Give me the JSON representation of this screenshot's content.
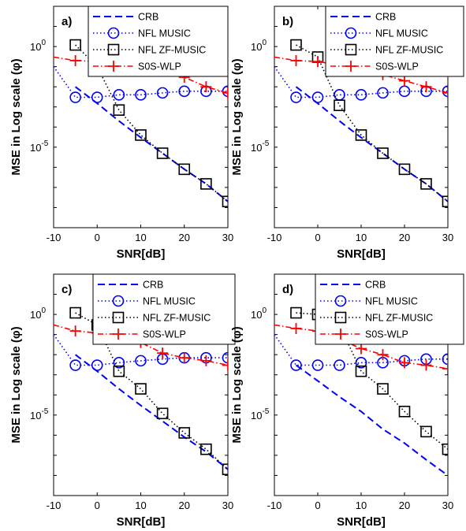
{
  "chart_data": [
    {
      "type": "line",
      "panel_label": "a)",
      "xlabel": "SNR[dB]",
      "ylabel": "MSE in Log scale (φ)",
      "x_ticks": [
        "-10",
        "0",
        "10",
        "20",
        "30"
      ],
      "y_tick_labels": [
        {
          "value": 1,
          "base": "10",
          "exp": "0"
        },
        {
          "value": 1e-05,
          "base": "10",
          "exp": "-5"
        }
      ],
      "xlim": [
        -10,
        30
      ],
      "ylim": [
        1e-09,
        100
      ],
      "yscale": "log",
      "grid": false,
      "legend_position": "top-right",
      "series": [
        {
          "name": "CRB",
          "color": "#0000ff",
          "style": "dashed",
          "marker": "none",
          "x": [
            -5,
            0,
            5,
            10,
            15,
            20,
            25,
            30
          ],
          "y": [
            0.01,
            0.0015,
            0.0002,
            3e-05,
            5e-06,
            8e-07,
            1.5e-07,
            2e-08
          ]
        },
        {
          "name": "NFL MUSIC",
          "color": "#0000ff",
          "style": "dotted",
          "marker": "circle",
          "x": [
            -10,
            -5,
            0,
            5,
            10,
            15,
            20,
            25,
            30
          ],
          "y": [
            0.1,
            0.003,
            0.003,
            0.004,
            0.004,
            0.005,
            0.006,
            0.006,
            0.006
          ]
        },
        {
          "name": "NFL ZF-MUSIC",
          "color": "#000000",
          "style": "dotted",
          "marker": "square",
          "x": [
            -5,
            0,
            5,
            10,
            15,
            20,
            25,
            30
          ],
          "y": [
            1.2,
            0.1,
            0.0007,
            4e-05,
            5e-06,
            8e-07,
            1.5e-07,
            2e-08
          ]
        },
        {
          "name": "S0S-WLP",
          "color": "#ff0000",
          "style": "dashdot",
          "marker": "plus",
          "x": [
            -10,
            -5,
            0,
            5,
            10,
            15,
            20,
            25,
            30
          ],
          "y": [
            0.3,
            0.2,
            0.18,
            0.12,
            0.08,
            0.06,
            0.03,
            0.01,
            0.005
          ]
        }
      ]
    },
    {
      "type": "line",
      "panel_label": "b)",
      "xlabel": "SNR[dB]",
      "ylabel": "MSE in Log scale (φ)",
      "x_ticks": [
        "-10",
        "0",
        "10",
        "20",
        "30"
      ],
      "y_tick_labels": [
        {
          "value": 1,
          "base": "10",
          "exp": "0"
        },
        {
          "value": 1e-05,
          "base": "10",
          "exp": "-5"
        }
      ],
      "xlim": [
        -10,
        30
      ],
      "ylim": [
        1e-09,
        100
      ],
      "yscale": "log",
      "grid": false,
      "legend_position": "top-right",
      "series": [
        {
          "name": "CRB",
          "color": "#0000ff",
          "style": "dashed",
          "marker": "none",
          "x": [
            -5,
            0,
            5,
            10,
            15,
            20,
            25,
            30
          ],
          "y": [
            0.01,
            0.0015,
            0.0002,
            3e-05,
            5e-06,
            8e-07,
            1.5e-07,
            2e-08
          ]
        },
        {
          "name": "NFL MUSIC",
          "color": "#0000ff",
          "style": "dotted",
          "marker": "circle",
          "x": [
            -10,
            -5,
            0,
            5,
            10,
            15,
            20,
            25,
            30
          ],
          "y": [
            0.1,
            0.003,
            0.003,
            0.004,
            0.004,
            0.005,
            0.006,
            0.006,
            0.006
          ]
        },
        {
          "name": "NFL ZF-MUSIC",
          "color": "#000000",
          "style": "dotted",
          "marker": "square",
          "x": [
            -5,
            0,
            5,
            10,
            15,
            20,
            25,
            30
          ],
          "y": [
            1.2,
            0.3,
            0.0012,
            4e-05,
            5e-06,
            8e-07,
            1.5e-07,
            2e-08
          ]
        },
        {
          "name": "S0S-WLP",
          "color": "#ff0000",
          "style": "dashdot",
          "marker": "plus",
          "x": [
            -10,
            -5,
            0,
            5,
            10,
            15,
            20,
            25,
            30
          ],
          "y": [
            0.3,
            0.2,
            0.18,
            0.12,
            0.07,
            0.04,
            0.02,
            0.01,
            0.005
          ]
        }
      ]
    },
    {
      "type": "line",
      "panel_label": "c)",
      "xlabel": "SNR[dB]",
      "ylabel": "MSE in Log scale (φ)",
      "x_ticks": [
        "-10",
        "0",
        "10",
        "20",
        "30"
      ],
      "y_tick_labels": [
        {
          "value": 1,
          "base": "10",
          "exp": "0"
        },
        {
          "value": 1e-05,
          "base": "10",
          "exp": "-5"
        }
      ],
      "xlim": [
        -10,
        30
      ],
      "ylim": [
        1e-09,
        100
      ],
      "yscale": "log",
      "grid": false,
      "legend_position": "top-right",
      "series": [
        {
          "name": "CRB",
          "color": "#0000ff",
          "style": "dashed",
          "marker": "none",
          "x": [
            -5,
            0,
            5,
            10,
            15,
            20,
            25,
            30
          ],
          "y": [
            0.01,
            0.0015,
            0.0002,
            3e-05,
            5e-06,
            8e-07,
            1.5e-07,
            2e-08
          ]
        },
        {
          "name": "NFL MUSIC",
          "color": "#0000ff",
          "style": "dotted",
          "marker": "circle",
          "x": [
            -10,
            -5,
            0,
            5,
            10,
            15,
            20,
            25,
            30
          ],
          "y": [
            0.1,
            0.003,
            0.003,
            0.004,
            0.005,
            0.006,
            0.007,
            0.007,
            0.007
          ]
        },
        {
          "name": "NFL ZF-MUSIC",
          "color": "#000000",
          "style": "dotted",
          "marker": "square",
          "x": [
            -5,
            0,
            5,
            10,
            15,
            20,
            25,
            30
          ],
          "y": [
            1.2,
            0.3,
            0.0015,
            0.0002,
            1.2e-05,
            1.3e-06,
            2e-07,
            2e-08
          ]
        },
        {
          "name": "S0S-WLP",
          "color": "#ff0000",
          "style": "dashdot",
          "marker": "plus",
          "x": [
            -10,
            -5,
            0,
            5,
            10,
            15,
            20,
            25,
            30
          ],
          "y": [
            0.3,
            0.15,
            0.12,
            0.06,
            0.04,
            0.012,
            0.007,
            0.005,
            0.003
          ]
        }
      ]
    },
    {
      "type": "line",
      "panel_label": "d)",
      "xlabel": "SNR[dB]",
      "ylabel": "MSE in Log scale (φ)",
      "x_ticks": [
        "-10",
        "0",
        "10",
        "20",
        "30"
      ],
      "y_tick_labels": [
        {
          "value": 1,
          "base": "10",
          "exp": "0"
        },
        {
          "value": 1e-05,
          "base": "10",
          "exp": "-5"
        }
      ],
      "xlim": [
        -10,
        30
      ],
      "ylim": [
        1e-09,
        100
      ],
      "yscale": "log",
      "grid": false,
      "legend_position": "top-right",
      "series": [
        {
          "name": "CRB",
          "color": "#0000ff",
          "style": "dashed",
          "marker": "none",
          "x": [
            -5,
            0,
            5,
            10,
            15,
            20,
            25,
            30
          ],
          "y": [
            0.003,
            0.0005,
            8e-05,
            1.5e-05,
            2e-06,
            4e-07,
            6e-08,
            1e-08
          ]
        },
        {
          "name": "NFL MUSIC",
          "color": "#0000ff",
          "style": "dotted",
          "marker": "circle",
          "x": [
            -10,
            -5,
            0,
            5,
            10,
            15,
            20,
            25,
            30
          ],
          "y": [
            0.1,
            0.003,
            0.003,
            0.003,
            0.004,
            0.004,
            0.005,
            0.006,
            0.006
          ]
        },
        {
          "name": "NFL ZF-MUSIC",
          "color": "#000000",
          "style": "dotted",
          "marker": "square",
          "x": [
            -5,
            0,
            5,
            10,
            15,
            20,
            25,
            30
          ],
          "y": [
            1.2,
            1.0,
            0.3,
            0.0015,
            0.0002,
            1.5e-05,
            1.5e-06,
            2e-07
          ]
        },
        {
          "name": "S0S-WLP",
          "color": "#ff0000",
          "style": "dashdot",
          "marker": "plus",
          "x": [
            -10,
            -5,
            0,
            5,
            10,
            15,
            20,
            25,
            30
          ],
          "y": [
            0.3,
            0.2,
            0.15,
            0.06,
            0.02,
            0.01,
            0.004,
            0.003,
            0.002
          ]
        }
      ]
    }
  ]
}
